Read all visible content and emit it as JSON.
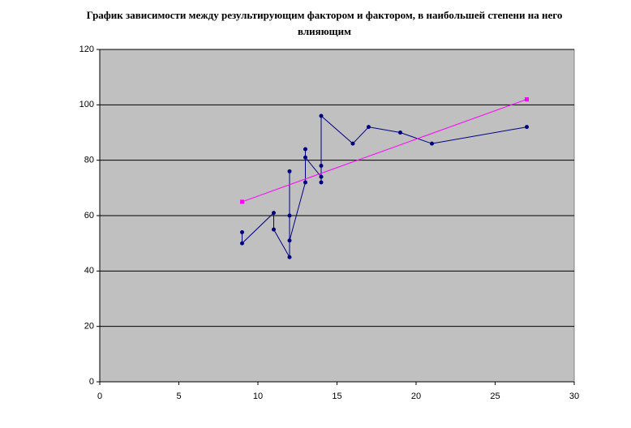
{
  "chart_data": {
    "type": "line",
    "title": "График зависимости между результирующим фактором и фактором, в наибольшей степени на него влияющим",
    "series": [
      {
        "color": "#000080",
        "marker": "circle",
        "x": [
          9,
          9,
          11,
          11,
          12,
          12,
          12,
          12,
          13,
          13,
          13,
          14,
          14,
          14,
          14,
          16,
          17,
          19,
          21,
          27
        ],
        "values": [
          54,
          50,
          61,
          55,
          45,
          76,
          60,
          51,
          72,
          84,
          81,
          74,
          72,
          78,
          96,
          86,
          92,
          90,
          86,
          92
        ]
      },
      {
        "color": "#ff00ff",
        "marker": "square",
        "x": [
          9,
          27
        ],
        "values": [
          65,
          102
        ]
      }
    ],
    "xlim": [
      0,
      30
    ],
    "xticks": [
      0,
      5,
      10,
      15,
      20,
      25,
      30
    ],
    "ylim": [
      0,
      120
    ],
    "yticks": [
      0,
      20,
      40,
      60,
      80,
      100,
      120
    ],
    "grid": true,
    "background": "#c0c0c0"
  }
}
